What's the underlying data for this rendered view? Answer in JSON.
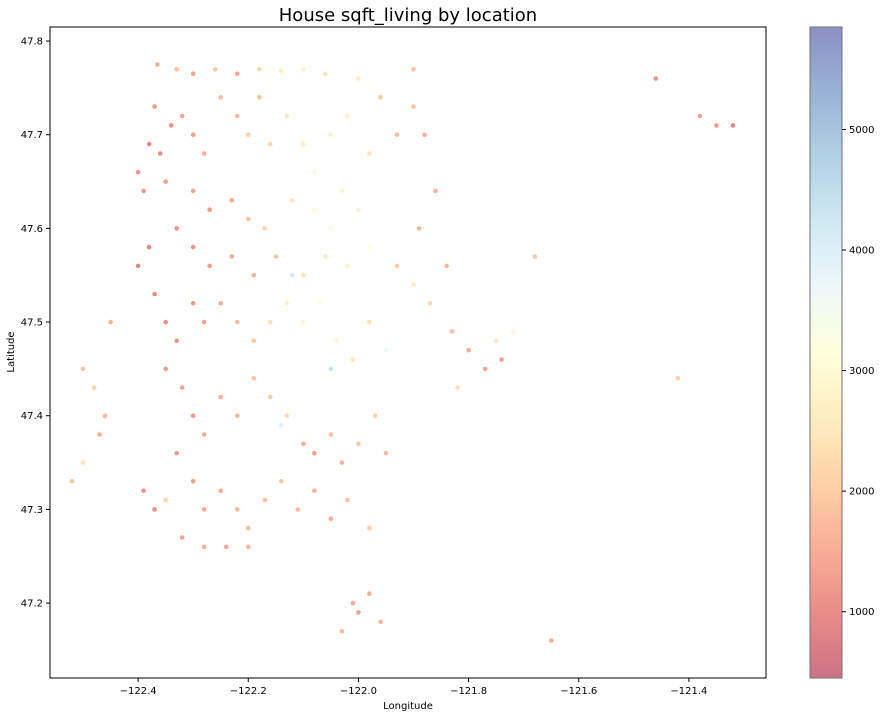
{
  "chart_data": {
    "type": "scatter",
    "title": "House sqft_living by location",
    "xlabel": "Longitude",
    "ylabel": "Latitude",
    "xlim": [
      -122.56,
      -121.26
    ],
    "ylim": [
      47.12,
      47.815
    ],
    "x_ticks": [
      -122.4,
      -122.2,
      -122.0,
      -121.8,
      -121.6,
      -121.4
    ],
    "x_tick_labels": [
      "−122.4",
      "−122.2",
      "−122.0",
      "−121.8",
      "−121.6",
      "−121.4"
    ],
    "y_ticks": [
      47.2,
      47.3,
      47.4,
      47.5,
      47.6,
      47.7,
      47.8
    ],
    "y_tick_labels": [
      "47.2",
      "47.3",
      "47.4",
      "47.5",
      "47.6",
      "47.7",
      "47.8"
    ],
    "grid": false,
    "colorbar": {
      "colormap": "RdYlBu",
      "range": [
        450,
        5850
      ],
      "ticks": [
        1000,
        2000,
        3000,
        4000,
        5000
      ],
      "tick_labels": [
        "1000",
        "2000",
        "3000",
        "4000",
        "5000"
      ]
    },
    "points": [
      [
        -122.365,
        47.775,
        1500
      ],
      [
        -122.33,
        47.77,
        1800
      ],
      [
        -122.3,
        47.765,
        1300
      ],
      [
        -122.26,
        47.77,
        1900
      ],
      [
        -122.22,
        47.765,
        1400
      ],
      [
        -122.18,
        47.77,
        2200
      ],
      [
        -122.14,
        47.768,
        2600
      ],
      [
        -122.1,
        47.77,
        2800
      ],
      [
        -122.06,
        47.765,
        2400
      ],
      [
        -122.0,
        47.76,
        2600
      ],
      [
        -121.9,
        47.77,
        1800
      ],
      [
        -122.37,
        47.73,
        1200
      ],
      [
        -122.34,
        47.71,
        1100
      ],
      [
        -122.38,
        47.69,
        900
      ],
      [
        -122.36,
        47.68,
        1000
      ],
      [
        -122.4,
        47.66,
        1100
      ],
      [
        -122.39,
        47.64,
        1200
      ],
      [
        -122.35,
        47.65,
        1300
      ],
      [
        -122.32,
        47.72,
        1400
      ],
      [
        -122.3,
        47.7,
        1300
      ],
      [
        -122.28,
        47.68,
        1500
      ],
      [
        -122.25,
        47.74,
        1700
      ],
      [
        -122.22,
        47.72,
        1600
      ],
      [
        -122.2,
        47.7,
        2000
      ],
      [
        -122.18,
        47.74,
        1800
      ],
      [
        -122.16,
        47.69,
        2200
      ],
      [
        -122.13,
        47.72,
        2500
      ],
      [
        -122.1,
        47.69,
        2700
      ],
      [
        -122.08,
        47.66,
        3000
      ],
      [
        -122.05,
        47.7,
        2800
      ],
      [
        -122.02,
        47.72,
        2600
      ],
      [
        -121.96,
        47.74,
        1900
      ],
      [
        -121.98,
        47.68,
        2400
      ],
      [
        -121.93,
        47.7,
        1700
      ],
      [
        -121.9,
        47.73,
        1800
      ],
      [
        -121.88,
        47.7,
        1600
      ],
      [
        -122.3,
        47.64,
        1300
      ],
      [
        -122.27,
        47.62,
        1200
      ],
      [
        -122.23,
        47.63,
        1400
      ],
      [
        -122.2,
        47.61,
        1800
      ],
      [
        -122.17,
        47.6,
        2100
      ],
      [
        -122.12,
        47.63,
        2500
      ],
      [
        -122.08,
        47.62,
        3100
      ],
      [
        -122.05,
        47.6,
        3300
      ],
      [
        -122.03,
        47.64,
        2900
      ],
      [
        -122.0,
        47.62,
        2700
      ],
      [
        -121.98,
        47.58,
        3200
      ],
      [
        -122.02,
        47.56,
        2800
      ],
      [
        -122.06,
        47.57,
        2600
      ],
      [
        -122.1,
        47.55,
        2400
      ],
      [
        -122.15,
        47.57,
        1900
      ],
      [
        -122.19,
        47.55,
        1600
      ],
      [
        -122.23,
        47.57,
        1400
      ],
      [
        -122.27,
        47.56,
        1200
      ],
      [
        -122.3,
        47.58,
        1100
      ],
      [
        -122.33,
        47.6,
        1000
      ],
      [
        -122.38,
        47.58,
        900
      ],
      [
        -122.4,
        47.56,
        850
      ],
      [
        -122.37,
        47.53,
        950
      ],
      [
        -122.35,
        47.5,
        1000
      ],
      [
        -122.33,
        47.48,
        1100
      ],
      [
        -122.3,
        47.52,
        1200
      ],
      [
        -122.28,
        47.5,
        1300
      ],
      [
        -122.25,
        47.52,
        1500
      ],
      [
        -122.22,
        47.5,
        1700
      ],
      [
        -122.19,
        47.48,
        1900
      ],
      [
        -122.16,
        47.5,
        2300
      ],
      [
        -122.13,
        47.52,
        2700
      ],
      [
        -122.1,
        47.5,
        3000
      ],
      [
        -122.07,
        47.52,
        3300
      ],
      [
        -122.04,
        47.48,
        2900
      ],
      [
        -122.01,
        47.46,
        2500
      ],
      [
        -121.98,
        47.5,
        2300
      ],
      [
        -121.93,
        47.56,
        2000
      ],
      [
        -121.9,
        47.54,
        2600
      ],
      [
        -121.87,
        47.52,
        2200
      ],
      [
        -121.83,
        47.49,
        1800
      ],
      [
        -121.8,
        47.47,
        1500
      ],
      [
        -121.77,
        47.45,
        1400
      ],
      [
        -121.75,
        47.48,
        2500
      ],
      [
        -121.72,
        47.49,
        3000
      ],
      [
        -121.84,
        47.56,
        1700
      ],
      [
        -121.89,
        47.6,
        1600
      ],
      [
        -122.35,
        47.45,
        1200
      ],
      [
        -122.32,
        47.43,
        1300
      ],
      [
        -122.3,
        47.4,
        1200
      ],
      [
        -122.28,
        47.38,
        1400
      ],
      [
        -122.25,
        47.42,
        1500
      ],
      [
        -122.22,
        47.4,
        1600
      ],
      [
        -122.19,
        47.44,
        1800
      ],
      [
        -122.16,
        47.42,
        2000
      ],
      [
        -122.13,
        47.4,
        2200
      ],
      [
        -122.1,
        47.37,
        1500
      ],
      [
        -122.08,
        47.36,
        1300
      ],
      [
        -122.05,
        47.38,
        1800
      ],
      [
        -122.03,
        47.35,
        1600
      ],
      [
        -122.0,
        47.37,
        1900
      ],
      [
        -121.97,
        47.4,
        2100
      ],
      [
        -121.95,
        47.36,
        1700
      ],
      [
        -122.33,
        47.36,
        1200
      ],
      [
        -122.3,
        47.33,
        1300
      ],
      [
        -122.28,
        47.3,
        1400
      ],
      [
        -122.25,
        47.32,
        1500
      ],
      [
        -122.22,
        47.3,
        1600
      ],
      [
        -122.2,
        47.28,
        1700
      ],
      [
        -122.17,
        47.31,
        1800
      ],
      [
        -122.14,
        47.33,
        1900
      ],
      [
        -122.11,
        47.3,
        1700
      ],
      [
        -122.08,
        47.32,
        1600
      ],
      [
        -122.05,
        47.29,
        1500
      ],
      [
        -122.02,
        47.31,
        1800
      ],
      [
        -121.98,
        47.28,
        2000
      ],
      [
        -122.39,
        47.32,
        1100
      ],
      [
        -122.37,
        47.3,
        1000
      ],
      [
        -122.35,
        47.31,
        2200
      ],
      [
        -122.32,
        47.27,
        1300
      ],
      [
        -122.28,
        47.26,
        1500
      ],
      [
        -122.24,
        47.26,
        1400
      ],
      [
        -122.2,
        47.26,
        1600
      ],
      [
        -122.01,
        47.2,
        1400
      ],
      [
        -122.0,
        47.19,
        1300
      ],
      [
        -121.98,
        47.21,
        1500
      ],
      [
        -122.03,
        47.17,
        1700
      ],
      [
        -121.96,
        47.18,
        1600
      ],
      [
        -122.5,
        47.45,
        1800
      ],
      [
        -122.48,
        47.43,
        2100
      ],
      [
        -122.46,
        47.4,
        1700
      ],
      [
        -122.45,
        47.5,
        1600
      ],
      [
        -122.47,
        47.38,
        1500
      ],
      [
        -122.5,
        47.35,
        2400
      ],
      [
        -122.52,
        47.33,
        1900
      ],
      [
        -121.65,
        47.16,
        1500
      ],
      [
        -121.42,
        47.44,
        2000
      ],
      [
        -121.46,
        47.76,
        1100
      ],
      [
        -121.38,
        47.72,
        1400
      ],
      [
        -121.35,
        47.71,
        1200
      ],
      [
        -121.32,
        47.71,
        900
      ],
      [
        -121.68,
        47.57,
        1900
      ],
      [
        -121.82,
        47.43,
        2300
      ],
      [
        -121.74,
        47.46,
        1300
      ],
      [
        -121.86,
        47.64,
        1500
      ],
      [
        -121.95,
        47.47,
        3700
      ],
      [
        -122.12,
        47.55,
        4200
      ],
      [
        -122.05,
        47.45,
        4400
      ],
      [
        -122.14,
        47.39,
        3900
      ]
    ]
  }
}
